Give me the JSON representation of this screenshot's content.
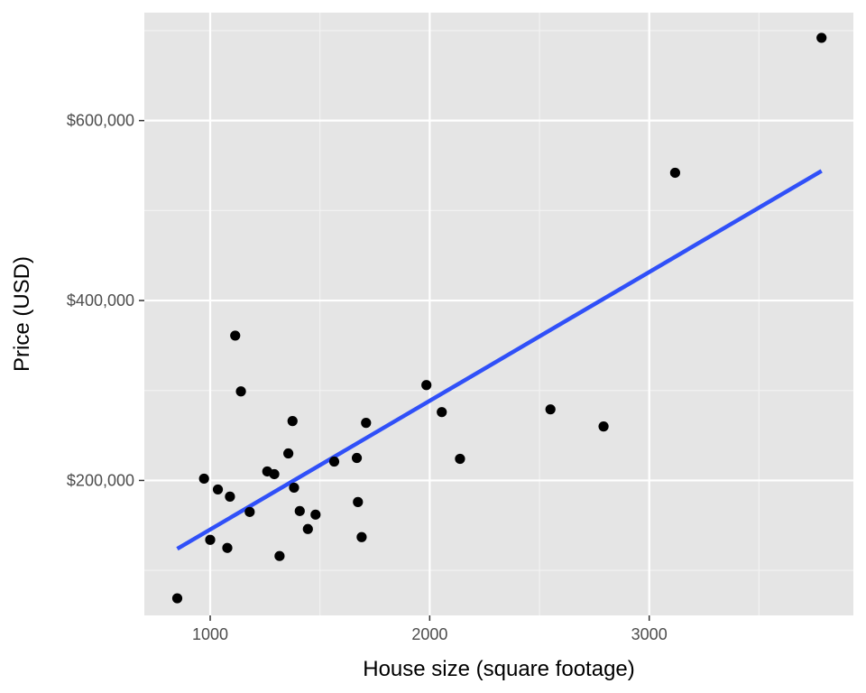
{
  "chart_data": {
    "type": "scatter",
    "xlabel": "House size (square footage)",
    "ylabel": "Price (USD)",
    "xlim": [
      700,
      3930
    ],
    "ylim": [
      50000,
      720000
    ],
    "x_ticks": [
      1000,
      2000,
      3000
    ],
    "x_minor_ticks": [
      1500,
      2500,
      3500
    ],
    "y_ticks": [
      200000,
      400000,
      600000
    ],
    "y_tick_labels": [
      "$200,000",
      "$400,000",
      "$600,000"
    ],
    "y_minor_ticks": [
      100000,
      300000,
      500000,
      700000
    ],
    "grid": true,
    "panel_color": "#e5e5e5",
    "point_color": "#000000",
    "trend_color": "#3050f8",
    "points": [
      {
        "x": 850,
        "y": 69000
      },
      {
        "x": 972,
        "y": 202000
      },
      {
        "x": 1000,
        "y": 134000
      },
      {
        "x": 1035,
        "y": 190000
      },
      {
        "x": 1078,
        "y": 125000
      },
      {
        "x": 1090,
        "y": 182000
      },
      {
        "x": 1114,
        "y": 361000
      },
      {
        "x": 1140,
        "y": 299000
      },
      {
        "x": 1180,
        "y": 165000
      },
      {
        "x": 1260,
        "y": 210000
      },
      {
        "x": 1292,
        "y": 207000
      },
      {
        "x": 1316,
        "y": 116000
      },
      {
        "x": 1356,
        "y": 230000
      },
      {
        "x": 1375,
        "y": 266000
      },
      {
        "x": 1382,
        "y": 192000
      },
      {
        "x": 1408,
        "y": 166000
      },
      {
        "x": 1445,
        "y": 146000
      },
      {
        "x": 1480,
        "y": 162000
      },
      {
        "x": 1565,
        "y": 221000
      },
      {
        "x": 1668,
        "y": 225000
      },
      {
        "x": 1673,
        "y": 176000
      },
      {
        "x": 1690,
        "y": 137000
      },
      {
        "x": 1710,
        "y": 264000
      },
      {
        "x": 1985,
        "y": 306000
      },
      {
        "x": 2055,
        "y": 276000
      },
      {
        "x": 2138,
        "y": 224000
      },
      {
        "x": 2550,
        "y": 279000
      },
      {
        "x": 2792,
        "y": 260000
      },
      {
        "x": 3118,
        "y": 542000
      },
      {
        "x": 3785,
        "y": 692000
      }
    ],
    "trend_line": {
      "x": [
        850,
        3785
      ],
      "y": [
        124000,
        544000
      ]
    }
  }
}
